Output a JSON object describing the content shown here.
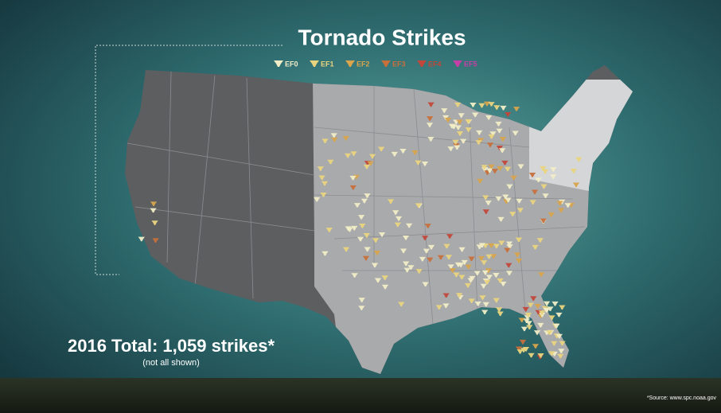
{
  "header": {
    "title": "Tornado Strikes"
  },
  "legend": [
    {
      "label": "EF0",
      "color": "#f1edc6"
    },
    {
      "label": "EF1",
      "color": "#e9d47e"
    },
    {
      "label": "EF2",
      "color": "#d8a44c"
    },
    {
      "label": "EF3",
      "color": "#c7703c"
    },
    {
      "label": "EF4",
      "color": "#c2473a"
    },
    {
      "label": "EF5",
      "color": "#c43fa6"
    }
  ],
  "total": {
    "label": "2016 Total: 1,059 strikes*",
    "note": "(not all shown)"
  },
  "source": "*Source: www.spc.noaa.gov"
}
